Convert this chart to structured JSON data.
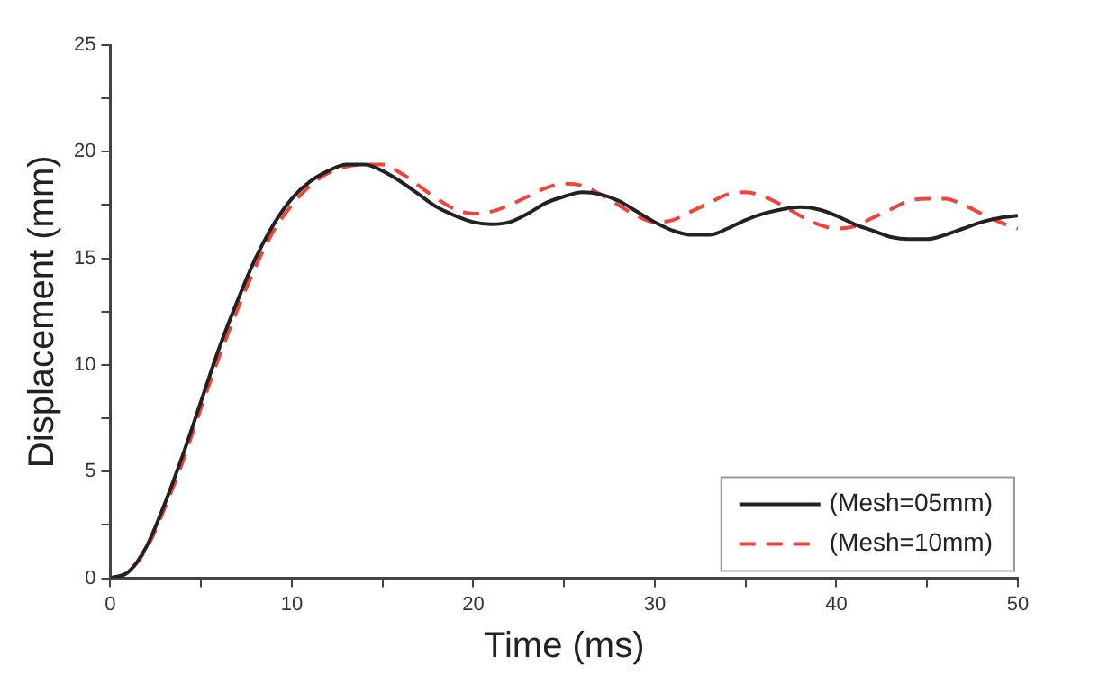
{
  "chart_data": {
    "type": "line",
    "xlabel": "Time (ms)",
    "ylabel": "Displacement (mm)",
    "x": [
      0,
      1,
      2,
      3,
      4,
      5,
      6,
      7,
      8,
      9,
      10,
      11,
      12,
      13,
      14,
      15,
      16,
      17,
      18,
      19,
      20,
      21,
      22,
      23,
      24,
      25,
      26,
      27,
      28,
      29,
      30,
      31,
      32,
      33,
      34,
      35,
      36,
      37,
      38,
      39,
      40,
      41,
      42,
      43,
      44,
      45,
      46,
      47,
      48,
      49,
      50
    ],
    "series": [
      {
        "name": "(Mesh=05mm)",
        "color": "#222222",
        "line_style": "solid",
        "values": [
          0,
          0.3,
          1.5,
          3.5,
          5.8,
          8.3,
          10.8,
          13,
          15,
          16.6,
          17.8,
          18.6,
          19.1,
          19.4,
          19.4,
          19.1,
          18.6,
          18,
          17.4,
          17,
          16.7,
          16.6,
          16.7,
          17.1,
          17.6,
          17.9,
          18.1,
          18,
          17.7,
          17.2,
          16.7,
          16.3,
          16.1,
          16.1,
          16.4,
          16.8,
          17.1,
          17.3,
          17.4,
          17.3,
          17,
          16.6,
          16.3,
          16,
          15.9,
          15.9,
          16.1,
          16.4,
          16.7,
          16.9,
          17
        ]
      },
      {
        "name": "(Mesh=10mm)",
        "color": "#f0433a",
        "line_style": "dashed",
        "values": [
          0,
          0.3,
          1.4,
          3.3,
          5.5,
          8,
          10.4,
          12.6,
          14.6,
          16.3,
          17.5,
          18.4,
          19,
          19.3,
          19.4,
          19.4,
          19,
          18.4,
          17.8,
          17.3,
          17.1,
          17.2,
          17.5,
          17.9,
          18.3,
          18.5,
          18.4,
          18,
          17.5,
          17,
          16.7,
          16.8,
          17.2,
          17.6,
          18,
          18.1,
          17.9,
          17.5,
          17,
          16.6,
          16.4,
          16.5,
          16.9,
          17.3,
          17.7,
          17.8,
          17.8,
          17.5,
          17.1,
          16.7,
          16.4
        ]
      }
    ],
    "xlim": [
      0,
      50
    ],
    "xticks": [
      0,
      {
        "value": 5,
        "label": null
      },
      10,
      {
        "value": 15,
        "label": null
      },
      20,
      {
        "value": 25,
        "label": null
      },
      30,
      {
        "value": 35,
        "label": null
      },
      40,
      {
        "value": 45,
        "label": null
      },
      50
    ],
    "ylim": [
      0,
      25
    ],
    "yticks": [
      0,
      {
        "value": 2.5,
        "label": null
      },
      5,
      {
        "value": 7.5,
        "label": null
      },
      10,
      {
        "value": 12.5,
        "label": null
      },
      15,
      {
        "value": 17.5,
        "label": null
      },
      20,
      {
        "value": 22.5,
        "label": null
      },
      25
    ],
    "grid": false,
    "legend": "bottom right",
    "marker": "none"
  }
}
